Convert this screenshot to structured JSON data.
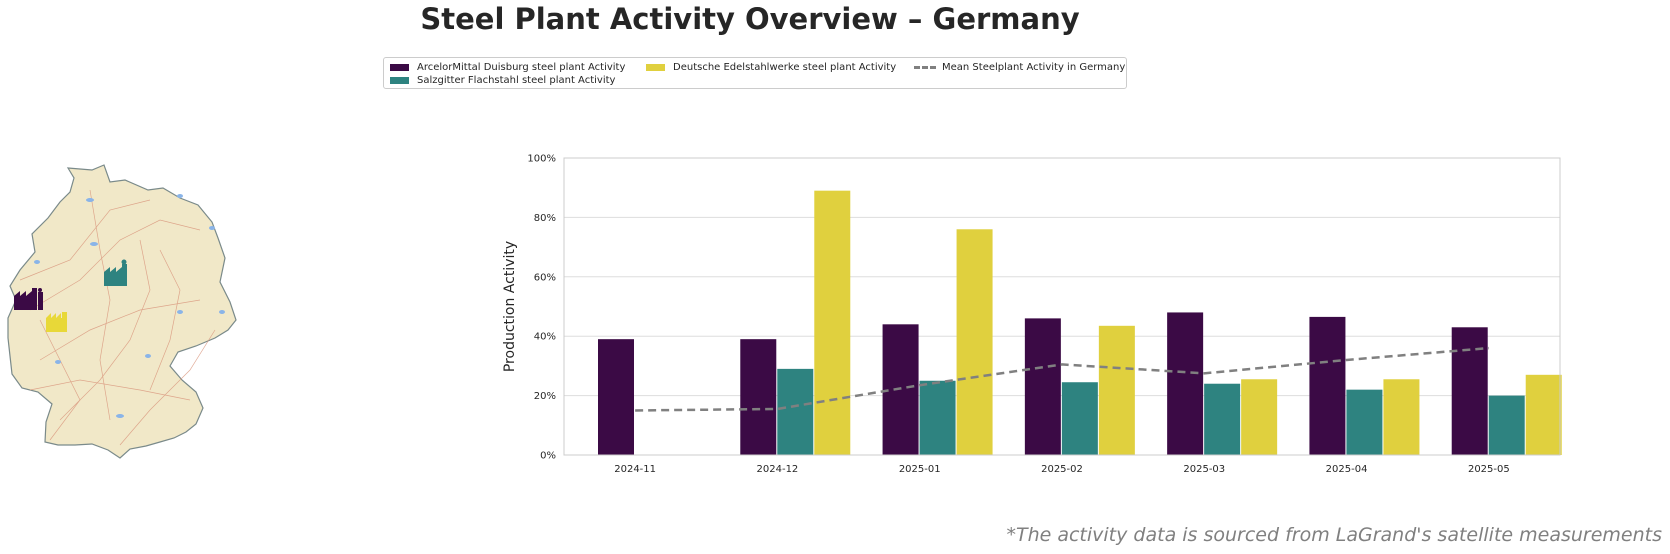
{
  "title": "Steel Plant Activity Overview – Germany",
  "footnote": "*The activity data is sourced from LaGrand's satellite measurements",
  "legend": {
    "items": [
      {
        "label": "ArcelorMittal Duisburg steel plant Activity",
        "color": "#3b0a45"
      },
      {
        "label": "Salzgitter Flachstahl steel plant Activity",
        "color": "#2e8380"
      },
      {
        "label": "Deutsche Edelstahlwerke steel plant Activity",
        "color": "#e0d03e"
      },
      {
        "label": "Mean Steelplant Activity in Germany",
        "color": "#808080"
      }
    ]
  },
  "map": {
    "markers": [
      {
        "icon": "factory-icon",
        "color": "#3b0a45"
      },
      {
        "icon": "factory-icon",
        "color": "#2e8380"
      },
      {
        "icon": "factory-icon",
        "color": "#e0d03e"
      }
    ]
  },
  "chart_data": {
    "type": "bar",
    "categories": [
      "2024-11",
      "2024-12",
      "2025-01",
      "2025-02",
      "2025-03",
      "2025-04",
      "2025-05"
    ],
    "series": [
      {
        "name": "ArcelorMittal Duisburg steel plant Activity",
        "color": "#3b0a45",
        "values": [
          39,
          39,
          44,
          46,
          48,
          46.5,
          43
        ]
      },
      {
        "name": "Salzgitter Flachstahl steel plant Activity",
        "color": "#2e8380",
        "values": [
          null,
          29,
          25,
          24.5,
          24,
          22,
          20
        ]
      },
      {
        "name": "Deutsche Edelstahlwerke steel plant Activity",
        "color": "#e0d03e",
        "values": [
          null,
          89,
          76,
          43.5,
          25.5,
          25.5,
          27
        ]
      }
    ],
    "mean_line": {
      "name": "Mean Steelplant Activity in Germany",
      "color": "#808080",
      "style": "dashed",
      "values": [
        15,
        15.5,
        23.5,
        30.5,
        27.5,
        32,
        36
      ]
    },
    "ylabel": "Production Activity",
    "ylim": [
      0,
      100
    ],
    "yticks": [
      0,
      20,
      40,
      60,
      80,
      100
    ],
    "ytick_labels": [
      "0%",
      "20%",
      "40%",
      "60%",
      "80%",
      "100%"
    ],
    "grid": true,
    "legend_position": "top-center"
  }
}
